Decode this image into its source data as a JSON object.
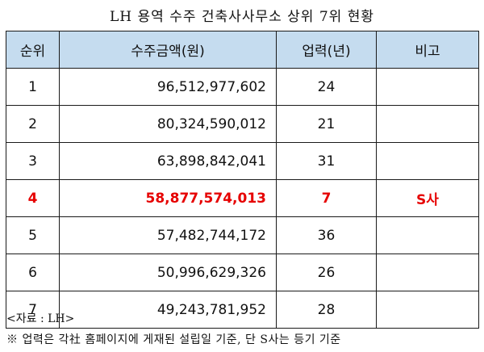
{
  "title": "LH 용역 수주 건축사사무소 상위 7위 현황",
  "columns": [
    "순위",
    "수주금액(원)",
    "업력(년)",
    "비고"
  ],
  "rows": [
    {
      "rank": "1",
      "amount": "96,512,977,602",
      "years": "24",
      "note": ""
    },
    {
      "rank": "2",
      "amount": "80,324,590,012",
      "years": "21",
      "note": ""
    },
    {
      "rank": "3",
      "amount": "63,898,842,041",
      "years": "31",
      "note": ""
    },
    {
      "rank": "4",
      "amount": "58,877,574,013",
      "years": "7",
      "note": "S사"
    },
    {
      "rank": "5",
      "amount": "57,482,744,172",
      "years": "36",
      "note": ""
    },
    {
      "rank": "6",
      "amount": "50,996,629,326",
      "years": "26",
      "note": ""
    },
    {
      "rank": "7",
      "amount": "49,243,781,952",
      "years": "28",
      "note": ""
    }
  ],
  "highlight_color": "#e60000",
  "header_background": "#c5dcef",
  "source": "<자료 : LH>",
  "footnote": "※ 업력은 각社 홈페이지에 게재된 설립일 기준, 단 S사는 등기 기준"
}
